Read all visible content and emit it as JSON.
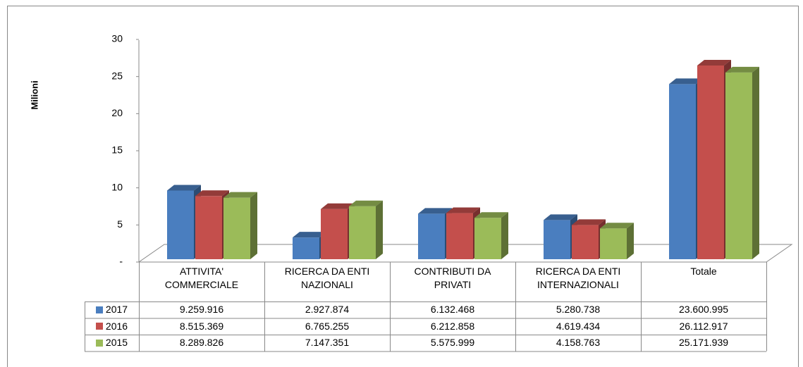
{
  "chart_data": {
    "type": "bar3d",
    "y_label": "Milioni",
    "categories": [
      "ATTIVITA' COMMERCIALE",
      "RICERCA DA ENTI NAZIONALI",
      "CONTRIBUTI DA PRIVATI",
      "RICERCA DA ENTI INTERNAZIONALI",
      "Totale"
    ],
    "series": [
      {
        "name": "2017",
        "color": "#4a7ebf",
        "values": [
          9.259916,
          2.927874,
          6.132468,
          5.280738,
          23.600995
        ],
        "value_labels": [
          "9.259.916",
          "2.927.874",
          "6.132.468",
          "5.280.738",
          "23.600.995"
        ]
      },
      {
        "name": "2016",
        "color": "#c44f4c",
        "values": [
          8.515369,
          6.765255,
          6.212858,
          4.619434,
          26.112917
        ],
        "value_labels": [
          "8.515.369",
          "6.765.255",
          "6.212.858",
          "4.619.434",
          "26.112.917"
        ]
      },
      {
        "name": "2015",
        "color": "#9bbb59",
        "values": [
          8.289826,
          7.147351,
          5.575999,
          4.158763,
          25.171939
        ],
        "value_labels": [
          "8.289.826",
          "7.147.351",
          "5.575.999",
          "4.158.763",
          "25.171.939"
        ]
      }
    ],
    "ylim": [
      0,
      30
    ],
    "yticks": [
      {
        "value": 0,
        "label": "-"
      },
      5,
      10,
      15,
      20,
      25,
      30
    ]
  }
}
